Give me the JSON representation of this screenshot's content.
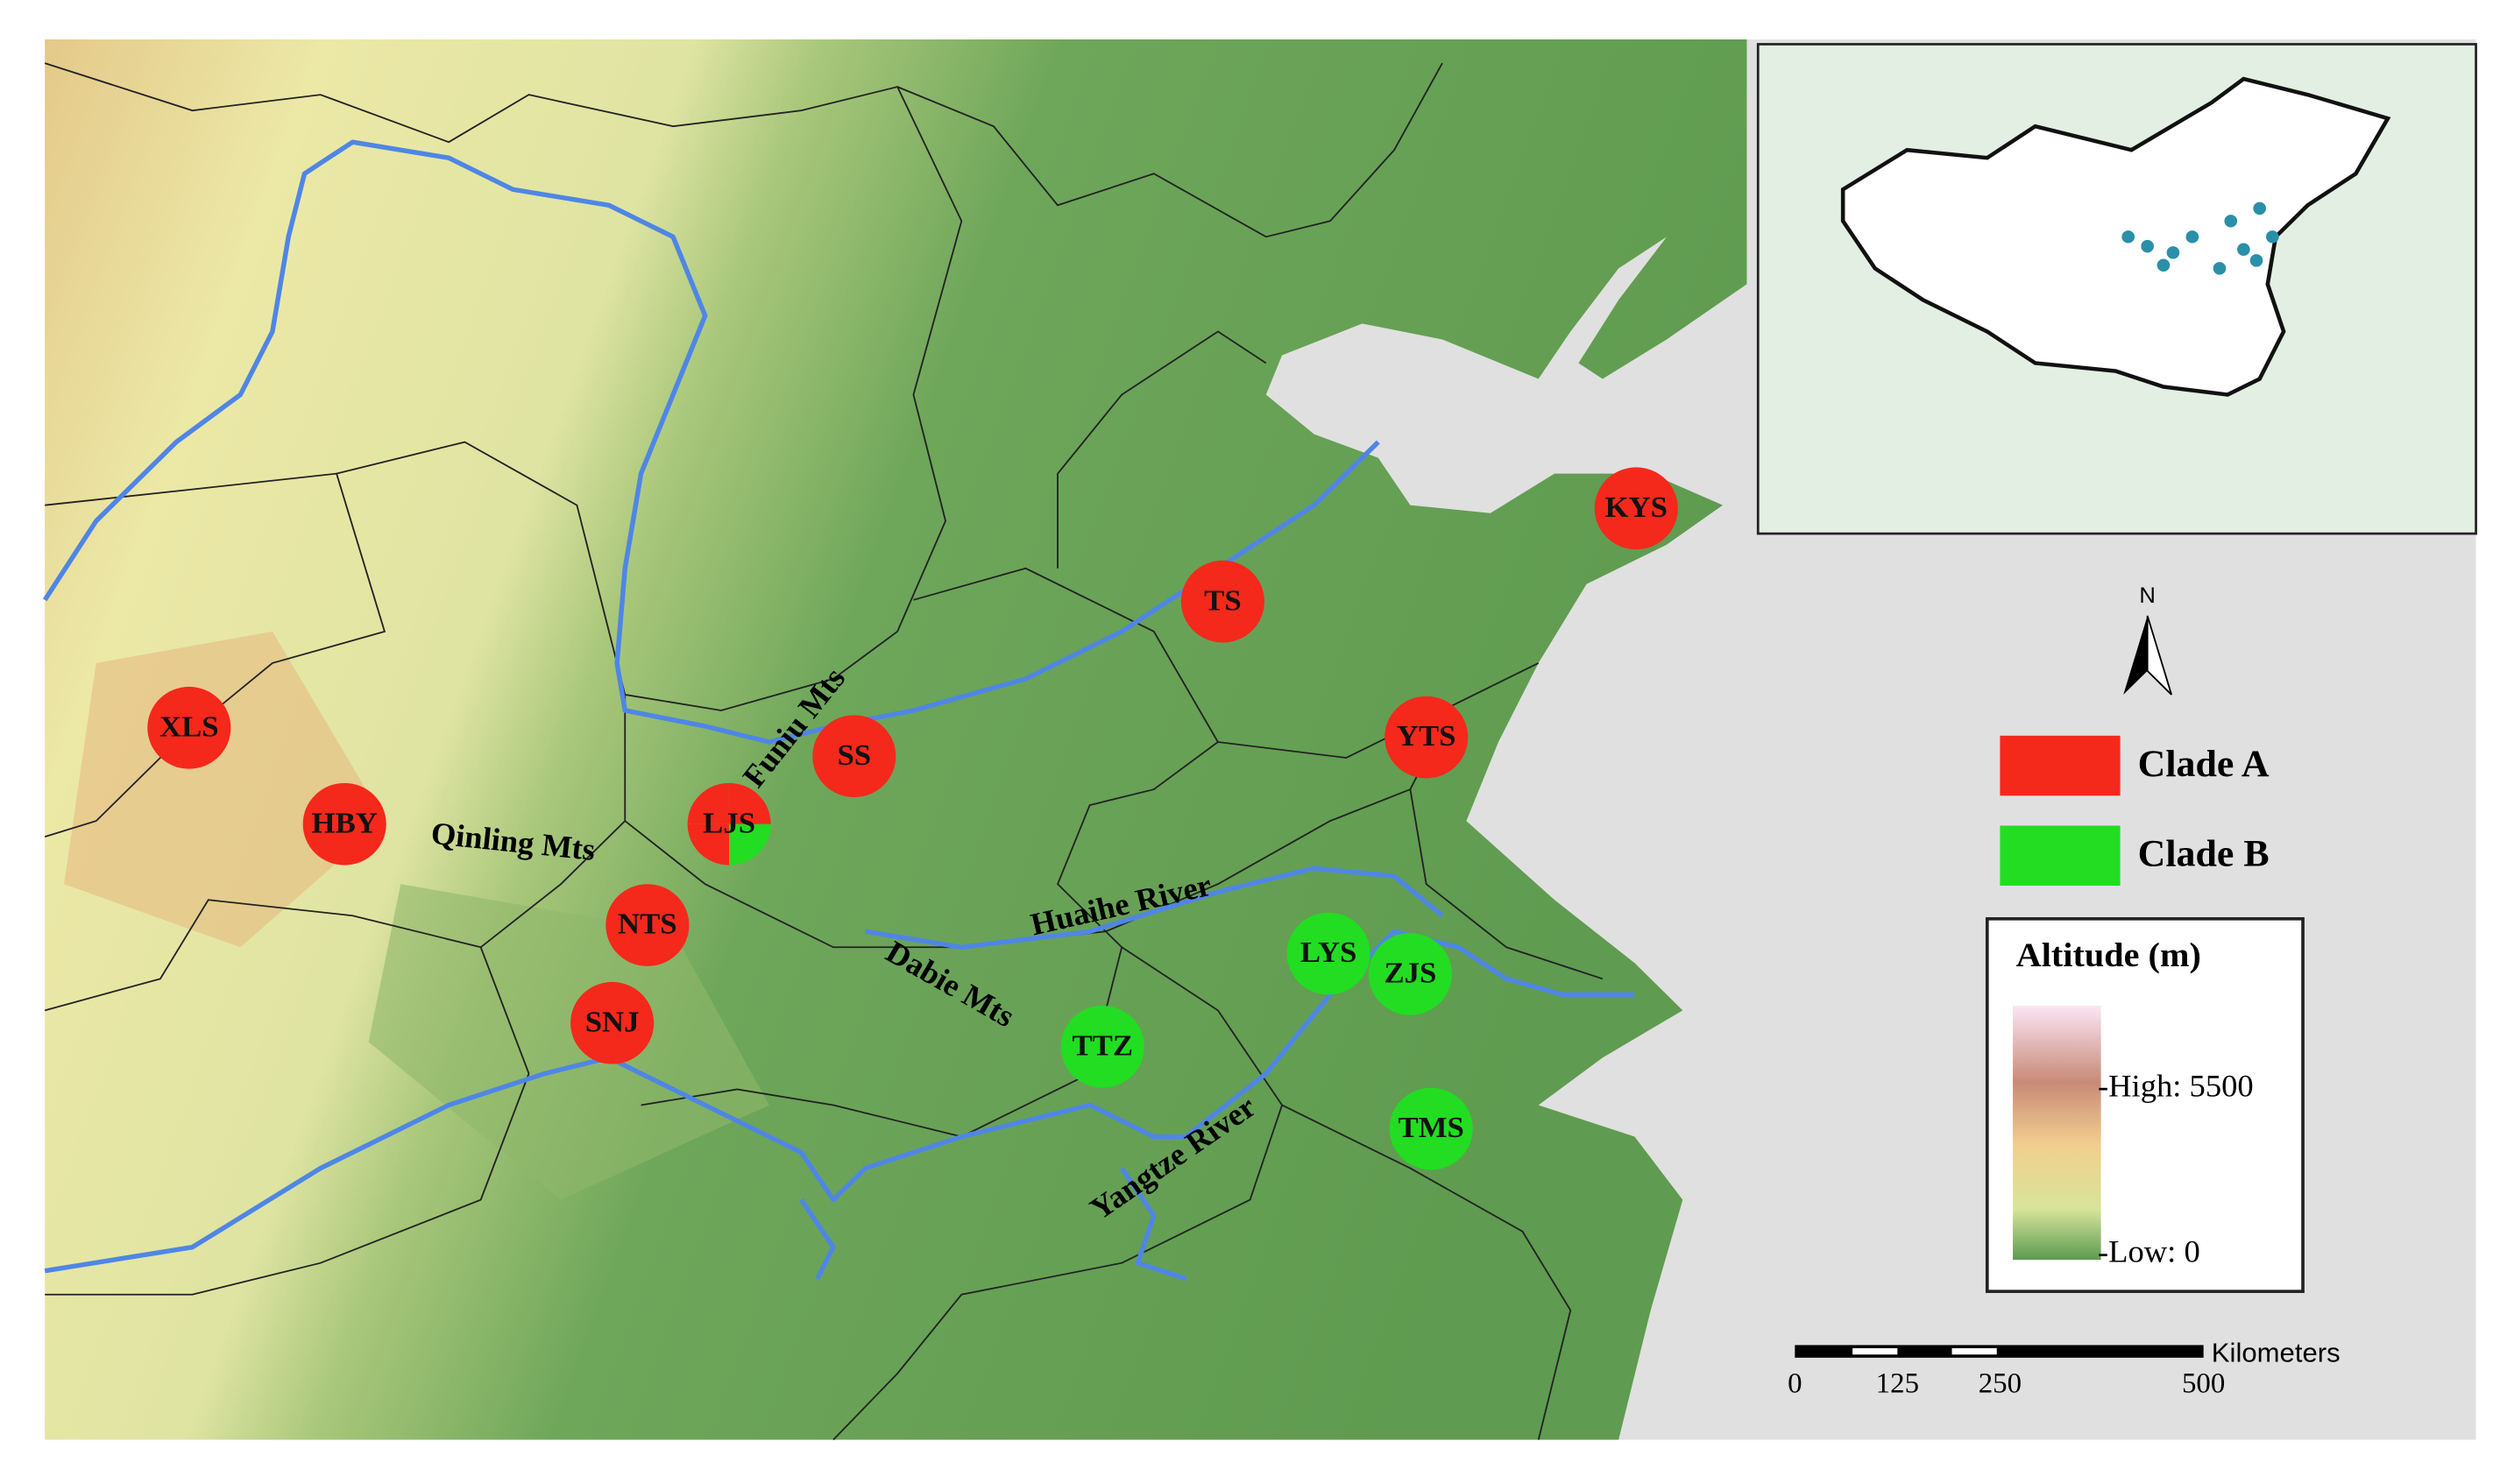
{
  "map_labels": [
    {
      "text": "Funiu Mts"
    },
    {
      "text": "Qinling Mts"
    },
    {
      "text": "Dabie Mts"
    },
    {
      "text": "Huaihe River"
    },
    {
      "text": "Yangtze River"
    }
  ],
  "sites": [
    {
      "label": "XLS",
      "colors": [
        "#f5281c"
      ]
    },
    {
      "label": "HBY",
      "colors": [
        "#f5281c"
      ]
    },
    {
      "label": "LJS",
      "colors": [
        "#f5281c",
        "#f5281c",
        "#f5281c",
        "#22dd22"
      ]
    },
    {
      "label": "SS",
      "colors": [
        "#f5281c"
      ]
    },
    {
      "label": "NTS",
      "colors": [
        "#f5281c"
      ]
    },
    {
      "label": "SNJ",
      "colors": [
        "#f5281c"
      ]
    },
    {
      "label": "TS",
      "colors": [
        "#f5281c"
      ]
    },
    {
      "label": "KYS",
      "colors": [
        "#f5281c"
      ]
    },
    {
      "label": "YTS",
      "colors": [
        "#f5281c"
      ]
    },
    {
      "label": "LYS",
      "colors": [
        "#22dd22"
      ]
    },
    {
      "label": "ZJS",
      "colors": [
        "#22dd22"
      ]
    },
    {
      "label": "TTZ",
      "colors": [
        "#22dd22"
      ]
    },
    {
      "label": "TMS",
      "colors": [
        "#22dd22"
      ]
    }
  ],
  "legend": {
    "items": [
      {
        "label": "Clade A",
        "color": "#f5281c"
      },
      {
        "label": "Clade B",
        "color": "#22dd22"
      }
    ]
  },
  "altitude_legend": {
    "title": "Altitude (m)",
    "high": "High: 5500",
    "low": "Low: 0"
  },
  "north": "N",
  "scale_bar": {
    "ticks": [
      "0",
      "125",
      "250",
      "500"
    ],
    "unit": "Kilometers"
  }
}
